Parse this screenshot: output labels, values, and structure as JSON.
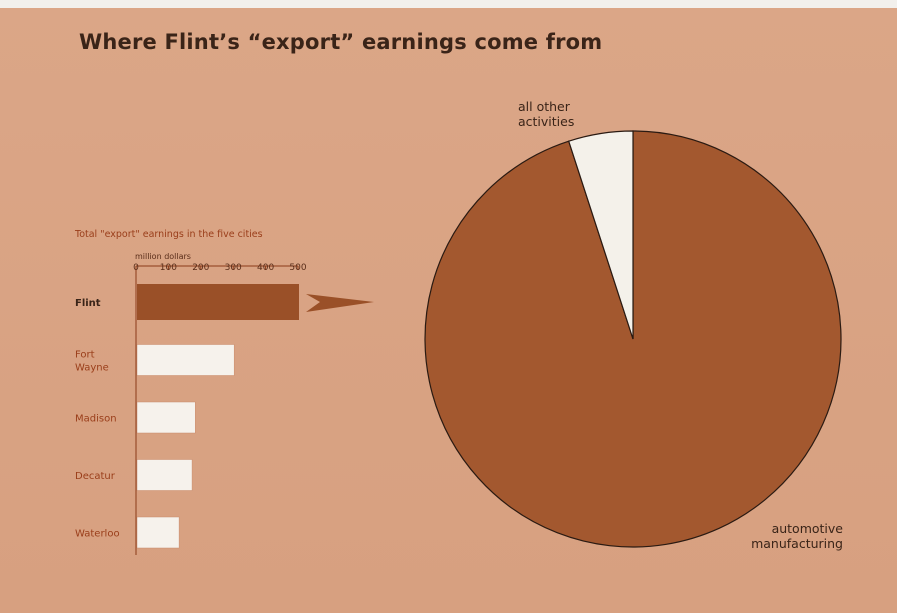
{
  "title": "Where Flint’s “export” earnings come from",
  "chart_data": [
    {
      "type": "bar",
      "title": "Total \"export\" earnings in the five cities",
      "unit_label": "million dollars",
      "ticks": [
        "0",
        "100",
        "200",
        "300",
        "400",
        "500"
      ],
      "xlim": [
        0,
        500
      ],
      "categories": [
        "Flint",
        "Fort Wayne",
        "Madison",
        "Decatur",
        "Waterloo"
      ],
      "category_lines": [
        [
          "Flint"
        ],
        [
          "Fort",
          "Wayne"
        ],
        [
          "Madison"
        ],
        [
          "Decatur"
        ],
        [
          "Waterloo"
        ]
      ],
      "values": [
        500,
        300,
        180,
        170,
        130
      ],
      "highlight": "Flint",
      "colors": {
        "highlight": "#9a5028",
        "other": "#f6f2ec",
        "text": "#9a3e1a",
        "axis": "#8a3a18"
      }
    },
    {
      "type": "pie",
      "labels": [
        "automotive manufacturing",
        "all other activities"
      ],
      "label_lines": [
        [
          "automotive",
          "manufacturing"
        ],
        [
          "all other",
          "activities"
        ]
      ],
      "values": [
        95,
        5
      ],
      "colors": [
        "#a3582f",
        "#f4f1ea"
      ]
    }
  ]
}
